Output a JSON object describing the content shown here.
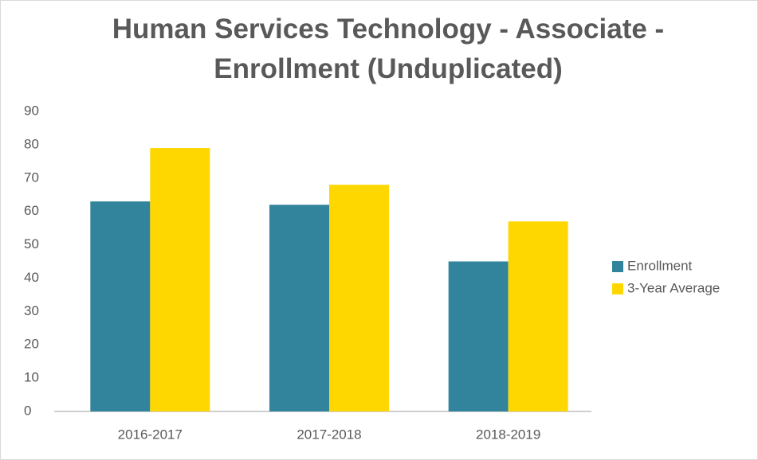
{
  "chart_data": {
    "type": "bar",
    "title": "Human Services Technology - Associate - Enrollment (Unduplicated)",
    "categories": [
      "2016-2017",
      "2017-2018",
      "2018-2019"
    ],
    "series": [
      {
        "name": "Enrollment",
        "color": "#31849b",
        "values": [
          63,
          62,
          45
        ]
      },
      {
        "name": "3-Year Average",
        "color": "#ffd700",
        "values": [
          79,
          68,
          57
        ]
      }
    ],
    "ylim": [
      0,
      90
    ],
    "yticks": [
      0,
      10,
      20,
      30,
      40,
      50,
      60,
      70,
      80,
      90
    ],
    "grid": false,
    "legend": "right"
  }
}
